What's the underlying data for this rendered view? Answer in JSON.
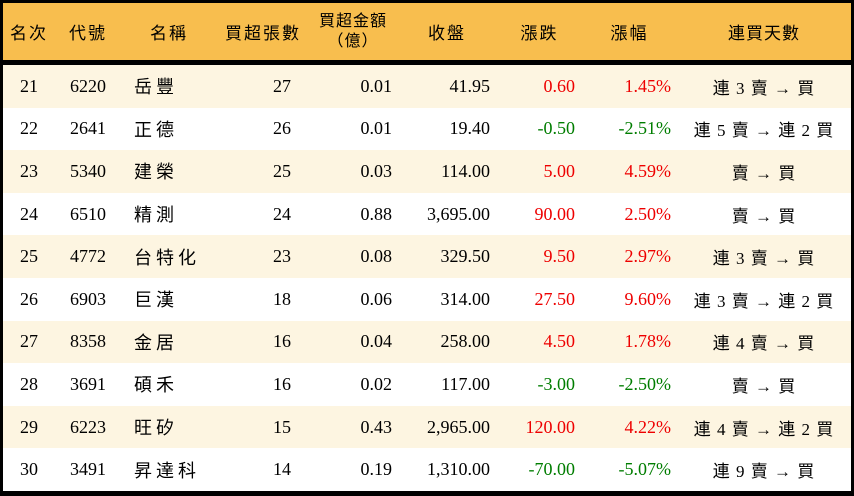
{
  "colors": {
    "header_bg": "#F8BE4E",
    "row_stripe": "#FDF5E1",
    "row_plain": "#FFFFFF",
    "up_red": "#EE0000",
    "down_green": "#007D00",
    "border": "#000000",
    "text": "#000000"
  },
  "chart_data": {
    "type": "table",
    "columns": [
      {
        "key": "rank",
        "label": "名次"
      },
      {
        "key": "code",
        "label": "代號"
      },
      {
        "key": "name",
        "label": "名稱"
      },
      {
        "key": "volume",
        "label": "買超張數"
      },
      {
        "key": "amount",
        "label": "買超金額",
        "label2": "（億）"
      },
      {
        "key": "close",
        "label": "收盤"
      },
      {
        "key": "change",
        "label": "漲跌"
      },
      {
        "key": "change_pct",
        "label": "漲幅"
      },
      {
        "key": "streak",
        "label": "連買天數"
      }
    ],
    "rows": [
      {
        "rank": "21",
        "code": "6220",
        "name": "岳豐",
        "volume": "27",
        "amount": "0.01",
        "close": "41.95",
        "change": "0.60",
        "change_pct": "1.45%",
        "streak": "連 3 賣 → 買",
        "trend": "up"
      },
      {
        "rank": "22",
        "code": "2641",
        "name": "正德",
        "volume": "26",
        "amount": "0.01",
        "close": "19.40",
        "change": "-0.50",
        "change_pct": "-2.51%",
        "streak": "連 5 賣 → 連 2 買",
        "trend": "down"
      },
      {
        "rank": "23",
        "code": "5340",
        "name": "建榮",
        "volume": "25",
        "amount": "0.03",
        "close": "114.00",
        "change": "5.00",
        "change_pct": "4.59%",
        "streak": "賣 → 買",
        "trend": "up"
      },
      {
        "rank": "24",
        "code": "6510",
        "name": "精測",
        "volume": "24",
        "amount": "0.88",
        "close": "3,695.00",
        "change": "90.00",
        "change_pct": "2.50%",
        "streak": "賣 → 買",
        "trend": "up"
      },
      {
        "rank": "25",
        "code": "4772",
        "name": "台特化",
        "volume": "23",
        "amount": "0.08",
        "close": "329.50",
        "change": "9.50",
        "change_pct": "2.97%",
        "streak": "連 3 賣 → 買",
        "trend": "up"
      },
      {
        "rank": "26",
        "code": "6903",
        "name": "巨漢",
        "volume": "18",
        "amount": "0.06",
        "close": "314.00",
        "change": "27.50",
        "change_pct": "9.60%",
        "streak": "連 3 賣 → 連 2 買",
        "trend": "up"
      },
      {
        "rank": "27",
        "code": "8358",
        "name": "金居",
        "volume": "16",
        "amount": "0.04",
        "close": "258.00",
        "change": "4.50",
        "change_pct": "1.78%",
        "streak": "連 4 賣 → 買",
        "trend": "up"
      },
      {
        "rank": "28",
        "code": "3691",
        "name": "碩禾",
        "volume": "16",
        "amount": "0.02",
        "close": "117.00",
        "change": "-3.00",
        "change_pct": "-2.50%",
        "streak": "賣 → 買",
        "trend": "down"
      },
      {
        "rank": "29",
        "code": "6223",
        "name": "旺矽",
        "volume": "15",
        "amount": "0.43",
        "close": "2,965.00",
        "change": "120.00",
        "change_pct": "4.22%",
        "streak": "連 4 賣 → 連 2 買",
        "trend": "up"
      },
      {
        "rank": "30",
        "code": "3491",
        "name": "昇達科",
        "volume": "14",
        "amount": "0.19",
        "close": "1,310.00",
        "change": "-70.00",
        "change_pct": "-5.07%",
        "streak": "連 9 賣 → 買",
        "trend": "down"
      }
    ]
  }
}
